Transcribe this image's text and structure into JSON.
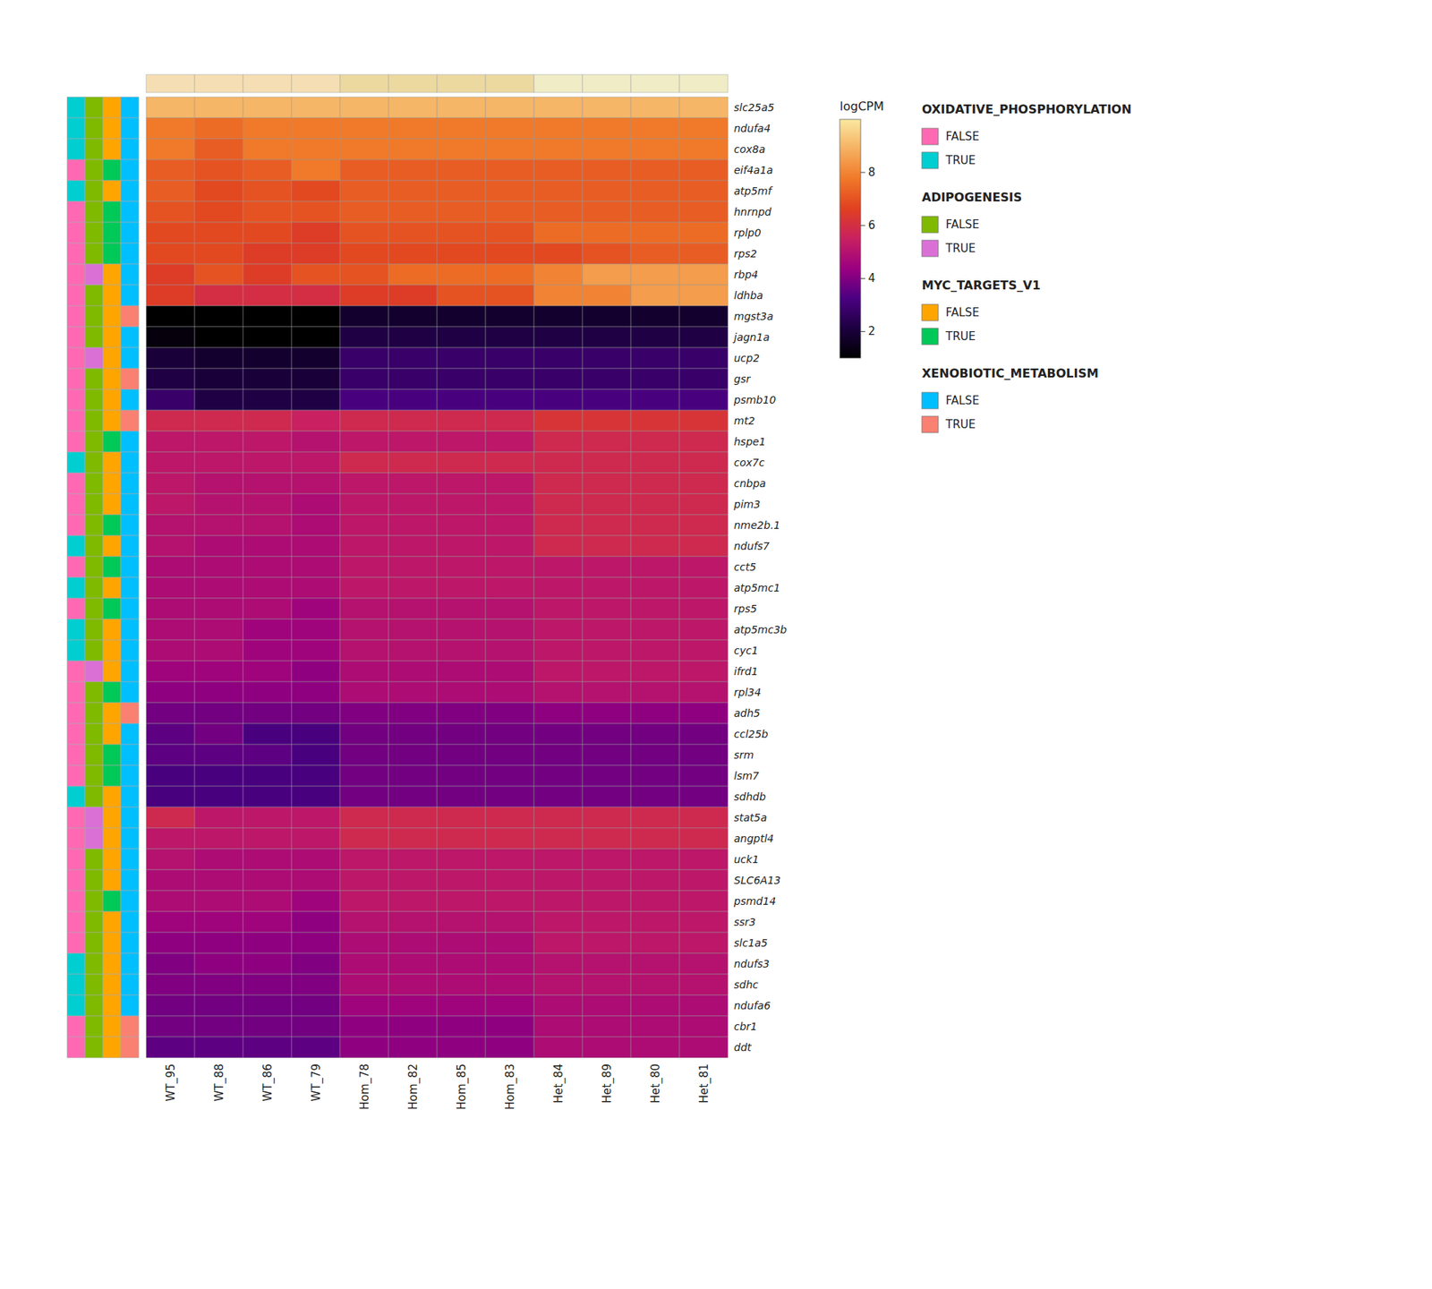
{
  "chart_data": {
    "type": "heatmap",
    "x": [
      "WT_95",
      "WT_88",
      "WT_86",
      "WT_79",
      "Hom_78",
      "Hom_82",
      "Hom_85",
      "Hom_83",
      "Het_84",
      "Het_89",
      "Het_80",
      "Het_81"
    ],
    "y": [
      "slc25a5",
      "ndufa4",
      "cox8a",
      "eif4a1a",
      "atp5mf",
      "hnrnpd",
      "rplp0",
      "rps2",
      "rbp4",
      "ldhba",
      "mgst3a",
      "jagn1a",
      "ucp2",
      "gsr",
      "psmb10",
      "mt2",
      "hspe1",
      "cox7c",
      "cnbpa",
      "pim3",
      "nme2b.1",
      "ndufs7",
      "cct5",
      "atp5mc1",
      "rps5",
      "atp5mc3b",
      "cyc1",
      "ifrd1",
      "rpl34",
      "adh5",
      "ccl25b",
      "srm",
      "lsm7",
      "sdhdb",
      "stat5a",
      "angptl4",
      "uck1",
      "SLC6A13",
      "psmd14",
      "ssr3",
      "slc1a5",
      "ndufs3",
      "sdhc",
      "ndufa6",
      "cbr1",
      "ddt"
    ],
    "values": [
      [
        9.0,
        9.0,
        9.0,
        9.0,
        9.0,
        9.0,
        9.0,
        9.0,
        9.0,
        9.0,
        9.0,
        9.0
      ],
      [
        7.8,
        7.5,
        7.8,
        7.8,
        7.8,
        7.8,
        7.8,
        7.8,
        7.8,
        7.8,
        7.8,
        7.8
      ],
      [
        7.8,
        7.2,
        7.8,
        7.8,
        7.8,
        7.8,
        7.8,
        7.8,
        7.8,
        7.8,
        7.8,
        7.8
      ],
      [
        7.2,
        7.0,
        7.2,
        7.8,
        7.2,
        7.2,
        7.2,
        7.2,
        7.2,
        7.2,
        7.2,
        7.2
      ],
      [
        7.2,
        6.8,
        7.0,
        6.8,
        7.2,
        7.2,
        7.2,
        7.2,
        7.2,
        7.2,
        7.2,
        7.2
      ],
      [
        7.0,
        6.8,
        7.0,
        7.0,
        7.2,
        7.2,
        7.2,
        7.2,
        7.2,
        7.2,
        7.2,
        7.2
      ],
      [
        6.8,
        6.8,
        6.8,
        6.5,
        7.0,
        7.0,
        7.0,
        7.0,
        7.5,
        7.5,
        7.5,
        7.5
      ],
      [
        6.8,
        6.8,
        6.5,
        6.5,
        6.8,
        6.8,
        6.8,
        6.8,
        6.8,
        7.0,
        7.2,
        7.2
      ],
      [
        6.5,
        7.0,
        6.5,
        7.0,
        7.0,
        7.5,
        7.5,
        7.5,
        8.0,
        8.5,
        8.5,
        8.5
      ],
      [
        6.5,
        6.0,
        6.0,
        6.0,
        6.5,
        6.5,
        7.0,
        7.0,
        8.0,
        8.0,
        8.5,
        8.5
      ],
      [
        1.0,
        1.0,
        1.0,
        1.0,
        1.8,
        1.8,
        1.8,
        1.8,
        1.8,
        1.8,
        1.8,
        1.8
      ],
      [
        1.2,
        1.0,
        1.0,
        1.0,
        2.2,
        2.2,
        2.2,
        2.2,
        2.2,
        2.2,
        2.2,
        2.2
      ],
      [
        2.0,
        1.8,
        1.8,
        1.8,
        2.8,
        2.8,
        2.8,
        2.8,
        2.8,
        2.8,
        2.8,
        2.8
      ],
      [
        2.2,
        2.0,
        2.0,
        2.0,
        2.8,
        2.8,
        2.8,
        2.8,
        2.8,
        2.8,
        2.8,
        2.8
      ],
      [
        2.8,
        2.2,
        2.2,
        2.2,
        3.2,
        3.2,
        3.2,
        3.2,
        3.2,
        3.2,
        3.2,
        3.2
      ],
      [
        5.8,
        5.8,
        5.8,
        5.5,
        5.8,
        5.8,
        5.8,
        5.8,
        6.2,
        6.2,
        6.2,
        6.2
      ],
      [
        5.2,
        5.2,
        5.2,
        5.0,
        5.2,
        5.2,
        5.2,
        5.2,
        5.8,
        5.8,
        5.8,
        5.8
      ],
      [
        5.2,
        5.2,
        5.2,
        5.2,
        5.8,
        5.8,
        5.8,
        5.8,
        5.8,
        5.8,
        5.8,
        5.8
      ],
      [
        5.2,
        5.0,
        5.0,
        5.0,
        5.2,
        5.2,
        5.2,
        5.2,
        5.8,
        5.8,
        5.8,
        5.8
      ],
      [
        5.2,
        5.0,
        5.0,
        4.8,
        5.2,
        5.2,
        5.2,
        5.2,
        5.8,
        5.8,
        5.8,
        5.8
      ],
      [
        5.0,
        5.0,
        5.0,
        4.8,
        5.2,
        5.2,
        5.2,
        5.2,
        5.8,
        5.8,
        5.8,
        5.8
      ],
      [
        5.0,
        4.8,
        4.8,
        4.8,
        5.2,
        5.2,
        5.2,
        5.2,
        5.8,
        5.8,
        5.8,
        5.8
      ],
      [
        4.8,
        4.8,
        4.8,
        4.8,
        5.2,
        5.2,
        5.2,
        5.2,
        5.2,
        5.2,
        5.2,
        5.2
      ],
      [
        4.8,
        4.8,
        4.8,
        4.8,
        5.2,
        5.2,
        5.2,
        5.2,
        5.2,
        5.2,
        5.2,
        5.2
      ],
      [
        4.8,
        4.8,
        4.8,
        4.5,
        5.0,
        5.0,
        5.0,
        5.0,
        5.2,
        5.2,
        5.2,
        5.2
      ],
      [
        4.8,
        4.8,
        4.5,
        4.5,
        5.0,
        5.0,
        5.0,
        5.0,
        5.2,
        5.2,
        5.2,
        5.2
      ],
      [
        4.8,
        4.8,
        4.5,
        4.5,
        5.0,
        5.0,
        5.0,
        5.0,
        5.2,
        5.2,
        5.2,
        5.2
      ],
      [
        4.5,
        4.5,
        4.5,
        4.2,
        4.8,
        4.8,
        4.8,
        4.8,
        5.2,
        5.2,
        5.2,
        5.2
      ],
      [
        4.2,
        4.2,
        4.2,
        4.2,
        4.8,
        4.8,
        4.8,
        4.8,
        5.0,
        5.0,
        5.0,
        5.0
      ],
      [
        3.8,
        3.8,
        3.8,
        3.8,
        4.0,
        4.0,
        4.0,
        4.0,
        4.2,
        4.2,
        4.2,
        4.2
      ],
      [
        3.5,
        3.8,
        3.2,
        3.2,
        3.8,
        3.8,
        3.8,
        3.8,
        3.8,
        3.8,
        3.8,
        3.8
      ],
      [
        3.5,
        3.5,
        3.5,
        3.2,
        3.8,
        3.8,
        3.8,
        3.8,
        3.8,
        3.8,
        3.8,
        3.8
      ],
      [
        3.2,
        3.2,
        3.2,
        3.2,
        3.8,
        3.8,
        3.8,
        3.8,
        3.8,
        3.8,
        3.8,
        3.8
      ],
      [
        3.2,
        3.2,
        3.2,
        3.2,
        3.8,
        3.8,
        3.8,
        3.8,
        3.8,
        3.8,
        3.8,
        3.8
      ],
      [
        5.8,
        5.2,
        5.2,
        5.2,
        5.8,
        5.8,
        5.8,
        5.8,
        5.8,
        5.8,
        5.8,
        5.8
      ],
      [
        5.2,
        5.2,
        5.2,
        5.2,
        5.8,
        5.8,
        5.8,
        5.8,
        5.8,
        5.8,
        5.8,
        5.8
      ],
      [
        5.0,
        4.8,
        4.8,
        4.8,
        5.2,
        5.2,
        5.2,
        5.2,
        5.2,
        5.2,
        5.2,
        5.2
      ],
      [
        4.8,
        4.8,
        4.8,
        4.8,
        5.2,
        5.2,
        5.2,
        5.2,
        5.2,
        5.2,
        5.2,
        5.2
      ],
      [
        4.8,
        4.8,
        4.8,
        4.5,
        5.2,
        5.2,
        5.2,
        5.2,
        5.2,
        5.2,
        5.2,
        5.2
      ],
      [
        4.5,
        4.5,
        4.5,
        4.2,
        5.0,
        5.0,
        5.0,
        5.0,
        5.2,
        5.2,
        5.2,
        5.2
      ],
      [
        4.2,
        4.2,
        4.2,
        4.2,
        4.8,
        4.8,
        4.8,
        4.8,
        5.2,
        5.2,
        5.2,
        5.2
      ],
      [
        4.0,
        4.2,
        4.2,
        4.0,
        4.8,
        4.8,
        4.8,
        4.8,
        5.0,
        5.0,
        5.0,
        5.0
      ],
      [
        4.0,
        4.0,
        4.0,
        4.0,
        4.8,
        4.8,
        4.8,
        4.8,
        5.0,
        5.0,
        5.0,
        5.0
      ],
      [
        3.8,
        3.8,
        3.8,
        3.8,
        4.5,
        4.5,
        4.5,
        4.5,
        4.8,
        4.8,
        4.8,
        4.8
      ],
      [
        3.8,
        3.8,
        3.8,
        3.8,
        4.2,
        4.2,
        4.2,
        4.2,
        4.8,
        4.8,
        4.8,
        4.8
      ],
      [
        3.5,
        3.5,
        3.5,
        3.5,
        4.2,
        4.2,
        4.2,
        4.2,
        4.8,
        4.8,
        4.8,
        4.8
      ]
    ],
    "colors": [
      "#000000",
      "#1C0040",
      "#4B0082",
      "#9B0080",
      "#C82060",
      "#E04020",
      "#F07828",
      "#F5B060",
      "#FAE8A0"
    ],
    "colorbar_title": "logCPM",
    "colorbar_range": [
      1.0,
      10.0
    ],
    "colorbar_ticks": [
      2,
      4,
      6,
      8
    ],
    "column_colors": [
      "#F5DEB3",
      "#F5DEB3",
      "#F5DEB3",
      "#F5DEB3",
      "#ECD9A0",
      "#ECD9A0",
      "#ECD9A0",
      "#ECD9A0",
      "#F0ECC5",
      "#F0ECC5",
      "#F0ECC5",
      "#F0ECC5"
    ],
    "annotations": [
      {
        "name": "OXIDATIVE_PHOSPHORYLATION",
        "labels": [
          "FALSE",
          "TRUE"
        ],
        "colors": [
          "#FF69B4",
          "#00CED1"
        ]
      },
      {
        "name": "ADIPOGENESIS",
        "labels": [
          "FALSE",
          "TRUE"
        ],
        "colors": [
          "#7FBA00",
          "#DA70D6"
        ]
      },
      {
        "name": "MYC_TARGETS_V1",
        "labels": [
          "FALSE",
          "TRUE"
        ],
        "colors": [
          "#FFA500",
          "#00C957"
        ]
      },
      {
        "name": "XENOBIOTIC_METABOLISM",
        "labels": [
          "FALSE",
          "TRUE"
        ],
        "colors": [
          "#00BFFF",
          "#FA8072"
        ]
      }
    ],
    "annotation_values": [
      [
        true,
        false,
        false,
        false
      ],
      [
        true,
        false,
        false,
        false
      ],
      [
        true,
        false,
        false,
        false
      ],
      [
        false,
        false,
        true,
        false
      ],
      [
        true,
        false,
        false,
        false
      ],
      [
        false,
        false,
        true,
        false
      ],
      [
        false,
        false,
        true,
        false
      ],
      [
        false,
        false,
        true,
        false
      ],
      [
        false,
        true,
        false,
        false
      ],
      [
        false,
        false,
        false,
        false
      ],
      [
        false,
        false,
        false,
        true
      ],
      [
        false,
        false,
        false,
        false
      ],
      [
        false,
        true,
        false,
        false
      ],
      [
        false,
        false,
        false,
        true
      ],
      [
        false,
        false,
        false,
        false
      ],
      [
        false,
        false,
        false,
        true
      ],
      [
        false,
        false,
        true,
        false
      ],
      [
        true,
        false,
        false,
        false
      ],
      [
        false,
        false,
        false,
        false
      ],
      [
        false,
        false,
        false,
        false
      ],
      [
        false,
        false,
        true,
        false
      ],
      [
        true,
        false,
        false,
        false
      ],
      [
        false,
        false,
        true,
        false
      ],
      [
        true,
        false,
        false,
        false
      ],
      [
        false,
        false,
        true,
        false
      ],
      [
        true,
        false,
        false,
        false
      ],
      [
        true,
        false,
        false,
        false
      ],
      [
        false,
        true,
        false,
        false
      ],
      [
        false,
        false,
        true,
        false
      ],
      [
        false,
        false,
        false,
        true
      ],
      [
        false,
        false,
        false,
        false
      ],
      [
        false,
        false,
        true,
        false
      ],
      [
        false,
        false,
        true,
        false
      ],
      [
        true,
        false,
        false,
        false
      ],
      [
        false,
        true,
        false,
        false
      ],
      [
        false,
        true,
        false,
        false
      ],
      [
        false,
        false,
        false,
        false
      ],
      [
        false,
        false,
        false,
        false
      ],
      [
        false,
        false,
        true,
        false
      ],
      [
        false,
        false,
        false,
        false
      ],
      [
        false,
        false,
        false,
        false
      ],
      [
        true,
        false,
        false,
        false
      ],
      [
        true,
        false,
        false,
        false
      ],
      [
        true,
        false,
        false,
        false
      ],
      [
        false,
        false,
        false,
        true
      ],
      [
        false,
        false,
        false,
        true
      ]
    ]
  }
}
